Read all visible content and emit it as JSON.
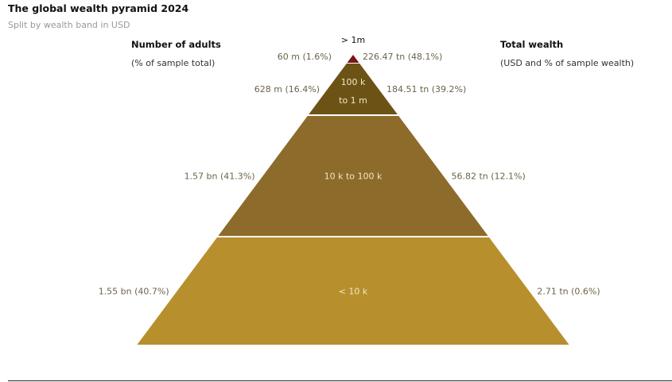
{
  "title": "The global wealth pyramid 2024",
  "subtitle": "Split by wealth band in USD",
  "left_header": {
    "title": "Number of adults",
    "subtitle": "(% of sample total)"
  },
  "right_header": {
    "title": "Total wealth",
    "subtitle": "(USD and % of sample wealth)"
  },
  "chart_data": {
    "type": "pyramid",
    "bands": [
      {
        "label": "> 1m",
        "adults": "60 m (1.6%)",
        "wealth": "226.47 tn (48.1%)",
        "color": "#7b1416"
      },
      {
        "label_lines": [
          "100 k",
          "to 1 m"
        ],
        "adults": "628 m (16.4%)",
        "wealth": "184.51 tn (39.2%)",
        "color": "#6c5315"
      },
      {
        "label": "10 k to 100 k",
        "adults": "1.57 bn (41.3%)",
        "wealth": "56.82 tn (12.1%)",
        "color": "#8d6b2b"
      },
      {
        "label": "< 10 k",
        "adults": "1.55 bn (40.7%)",
        "wealth": "2.71 tn (0.6%)",
        "color": "#b78f2d"
      }
    ]
  }
}
